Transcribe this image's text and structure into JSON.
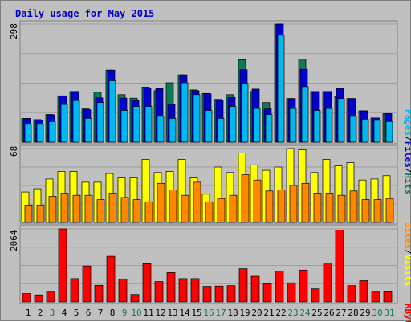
{
  "title": "Daily usage for May 2015",
  "colors": {
    "background": "#c0c0c0",
    "hits": "#0e7a5a",
    "files": "#0000d0",
    "pages": "#00b8f0",
    "visits": "#ffff00",
    "sites": "#ff8800",
    "kbytes": "#ff0000",
    "day_weekday": "#000000",
    "day_weekend": "#0e7a5a"
  },
  "chart_data": [
    {
      "type": "bar",
      "panel": "hits-files-pages",
      "y_tick_label": "298",
      "ylim": [
        0,
        298
      ],
      "categories": [
        "1",
        "2",
        "3",
        "4",
        "5",
        "6",
        "7",
        "8",
        "9",
        "10",
        "11",
        "12",
        "13",
        "14",
        "15",
        "16",
        "17",
        "18",
        "19",
        "20",
        "21",
        "22",
        "23",
        "24",
        "25",
        "26",
        "27",
        "28",
        "29",
        "30",
        "31"
      ],
      "series": [
        {
          "name": "Hits",
          "values": [
            60,
            57,
            70,
            117,
            128,
            84,
            126,
            182,
            120,
            111,
            139,
            130,
            150,
            170,
            132,
            123,
            108,
            120,
            208,
            128,
            100,
            298,
            110,
            210,
            128,
            128,
            115,
            110,
            79,
            61,
            72
          ]
        },
        {
          "name": "Files",
          "values": [
            60,
            56,
            69,
            117,
            128,
            82,
            112,
            182,
            111,
            105,
            137,
            135,
            95,
            170,
            130,
            122,
            106,
            113,
            183,
            134,
            84,
            298,
            110,
            184,
            128,
            128,
            135,
            110,
            79,
            61,
            72
          ]
        },
        {
          "name": "Pages",
          "values": [
            45,
            45,
            52,
            95,
            105,
            60,
            100,
            155,
            80,
            90,
            90,
            65,
            60,
            150,
            120,
            80,
            60,
            90,
            148,
            85,
            70,
            270,
            85,
            140,
            80,
            85,
            110,
            65,
            58,
            55,
            52
          ]
        }
      ]
    },
    {
      "type": "bar",
      "panel": "visits-sites",
      "y_tick_label": "68",
      "ylim": [
        0,
        68
      ],
      "categories": [
        "1",
        "2",
        "3",
        "4",
        "5",
        "6",
        "7",
        "8",
        "9",
        "10",
        "11",
        "12",
        "13",
        "14",
        "15",
        "16",
        "17",
        "18",
        "19",
        "20",
        "21",
        "22",
        "23",
        "24",
        "25",
        "26",
        "27",
        "28",
        "29",
        "30",
        "31"
      ],
      "series": [
        {
          "name": "Visits",
          "values": [
            28,
            31,
            40,
            47,
            47,
            37,
            37,
            45,
            41,
            41,
            58,
            46,
            47,
            58,
            41,
            26,
            51,
            46,
            64,
            53,
            48,
            51,
            68,
            67,
            46,
            58,
            52,
            55,
            39,
            40,
            43
          ]
        },
        {
          "name": "Sites",
          "values": [
            16,
            16,
            24,
            27,
            25,
            25,
            21,
            27,
            23,
            21,
            19,
            36,
            30,
            25,
            37,
            19,
            22,
            25,
            44,
            39,
            29,
            30,
            34,
            36,
            27,
            27,
            25,
            29,
            21,
            21,
            22
          ]
        }
      ]
    },
    {
      "type": "bar",
      "panel": "kbytes",
      "y_tick_label": "2064",
      "ylim": [
        0,
        2064
      ],
      "categories": [
        "1",
        "2",
        "3",
        "4",
        "5",
        "6",
        "7",
        "8",
        "9",
        "10",
        "11",
        "12",
        "13",
        "14",
        "15",
        "16",
        "17",
        "18",
        "19",
        "20",
        "21",
        "22",
        "23",
        "24",
        "25",
        "26",
        "27",
        "28",
        "29",
        "30",
        "31"
      ],
      "series": [
        {
          "name": "KBytes",
          "values": [
            235,
            200,
            280,
            2064,
            660,
            1015,
            470,
            1290,
            650,
            210,
            1080,
            575,
            830,
            660,
            660,
            440,
            450,
            460,
            940,
            725,
            510,
            875,
            540,
            900,
            370,
            1100,
            2030,
            460,
            600,
            280,
            290
          ]
        }
      ]
    }
  ],
  "weekend_days": [
    "3",
    "9",
    "10",
    "16",
    "17",
    "23",
    "24",
    "30",
    "31"
  ],
  "side_labels": {
    "top": {
      "pages": "Pages",
      "files": "Files",
      "hits": "Hits",
      "sep": "/"
    },
    "middle": {
      "sites": "Sites",
      "visits": "Visits",
      "sep": "/"
    },
    "bottom": {
      "kbytes": "KBytes"
    }
  }
}
